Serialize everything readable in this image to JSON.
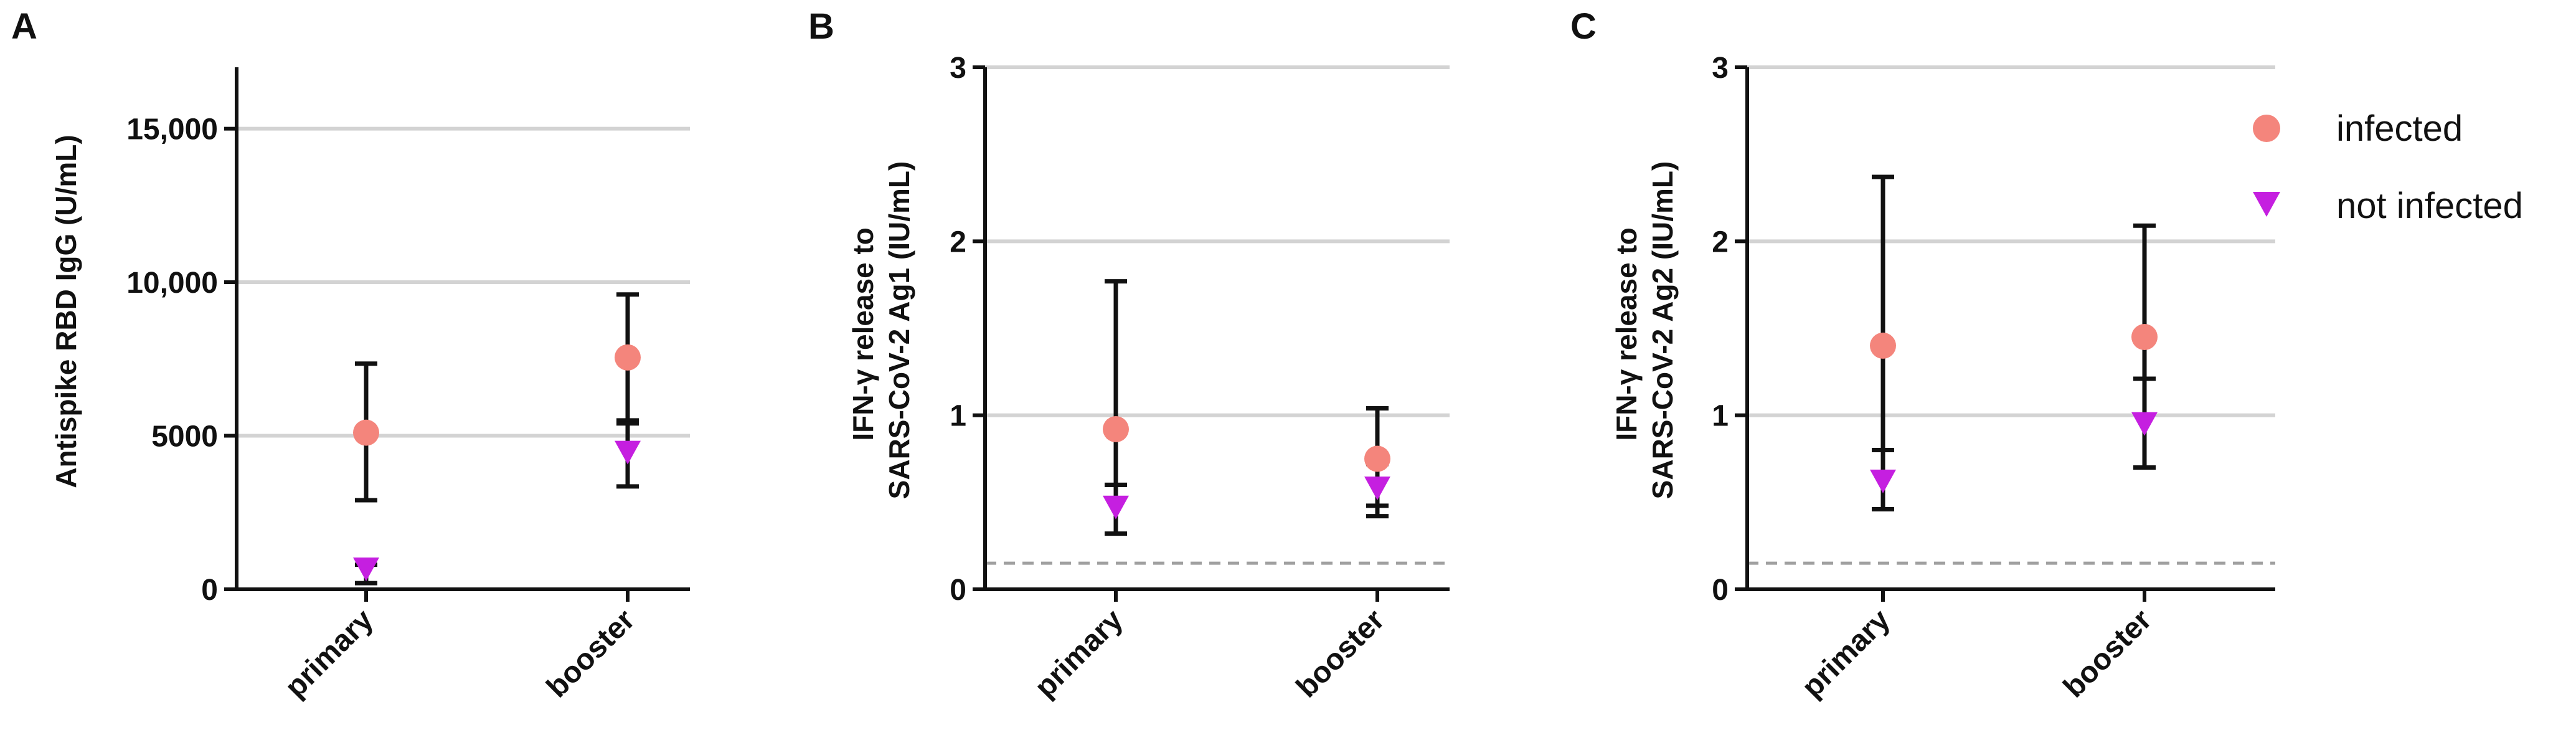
{
  "chart_data": [
    {
      "panel": "A",
      "type": "scatter",
      "title": "",
      "xlabel": "",
      "ylabel": "Antispike RBD IgG (U/mL)",
      "categories": [
        "primary",
        "booster"
      ],
      "ylim": [
        0,
        17000
      ],
      "yticks": [
        0,
        5000,
        10000,
        15000
      ],
      "ytick_labels": [
        "0",
        "5000",
        "10,000",
        "15,000"
      ],
      "grid": true,
      "series": [
        {
          "name": "infected",
          "values": [
            5100,
            7550
          ],
          "err_low": [
            2900,
            5500
          ],
          "err_high": [
            7350,
            9600
          ]
        },
        {
          "name": "not infected",
          "values": [
            650,
            4450
          ],
          "err_low": [
            200,
            3350
          ],
          "err_high": [
            800,
            5400
          ]
        }
      ]
    },
    {
      "panel": "B",
      "type": "scatter",
      "title": "",
      "xlabel": "",
      "ylabel": "IFN-γ release to SARS-CoV-2 Ag1 (IU/mL)",
      "categories": [
        "primary",
        "booster"
      ],
      "ylim": [
        0,
        3
      ],
      "yticks": [
        0,
        1,
        2,
        3
      ],
      "ytick_labels": [
        "0",
        "1",
        "2",
        "3"
      ],
      "grid": true,
      "cutoff_line": 0.15,
      "series": [
        {
          "name": "infected",
          "values": [
            0.92,
            0.75
          ],
          "err_low": [
            0.6,
            0.48
          ],
          "err_high": [
            1.77,
            1.04
          ]
        },
        {
          "name": "not infected",
          "values": [
            0.47,
            0.58
          ],
          "err_low": [
            0.32,
            0.42
          ],
          "err_high": [
            0.6,
            0.72
          ]
        }
      ]
    },
    {
      "panel": "C",
      "type": "scatter",
      "title": "",
      "xlabel": "",
      "ylabel": "IFN-γ release to SARS-CoV-2 Ag2 (IU/mL)",
      "categories": [
        "primary",
        "booster"
      ],
      "ylim": [
        0,
        3
      ],
      "yticks": [
        0,
        1,
        2,
        3
      ],
      "ytick_labels": [
        "0",
        "1",
        "2",
        "3"
      ],
      "grid": true,
      "cutoff_line": 0.15,
      "series": [
        {
          "name": "infected",
          "values": [
            1.4,
            1.45
          ],
          "err_low": [
            0.8,
            0.7
          ],
          "err_high": [
            2.37,
            2.09
          ]
        },
        {
          "name": "not infected",
          "values": [
            0.62,
            0.95
          ],
          "err_low": [
            0.46,
            0.7
          ],
          "err_high": [
            0.8,
            1.21
          ]
        }
      ]
    }
  ],
  "legend": {
    "items": [
      {
        "label": "infected",
        "marker": "circle",
        "color": "#f4857c"
      },
      {
        "label": "not infected",
        "marker": "triangle-down",
        "color": "#c51fe0"
      }
    ]
  },
  "colors": {
    "infected": "#f4857c",
    "not_infected": "#c51fe0",
    "axis": "#111111",
    "grid": "#d3d3d3",
    "cutoff": "#a0a0a0"
  }
}
